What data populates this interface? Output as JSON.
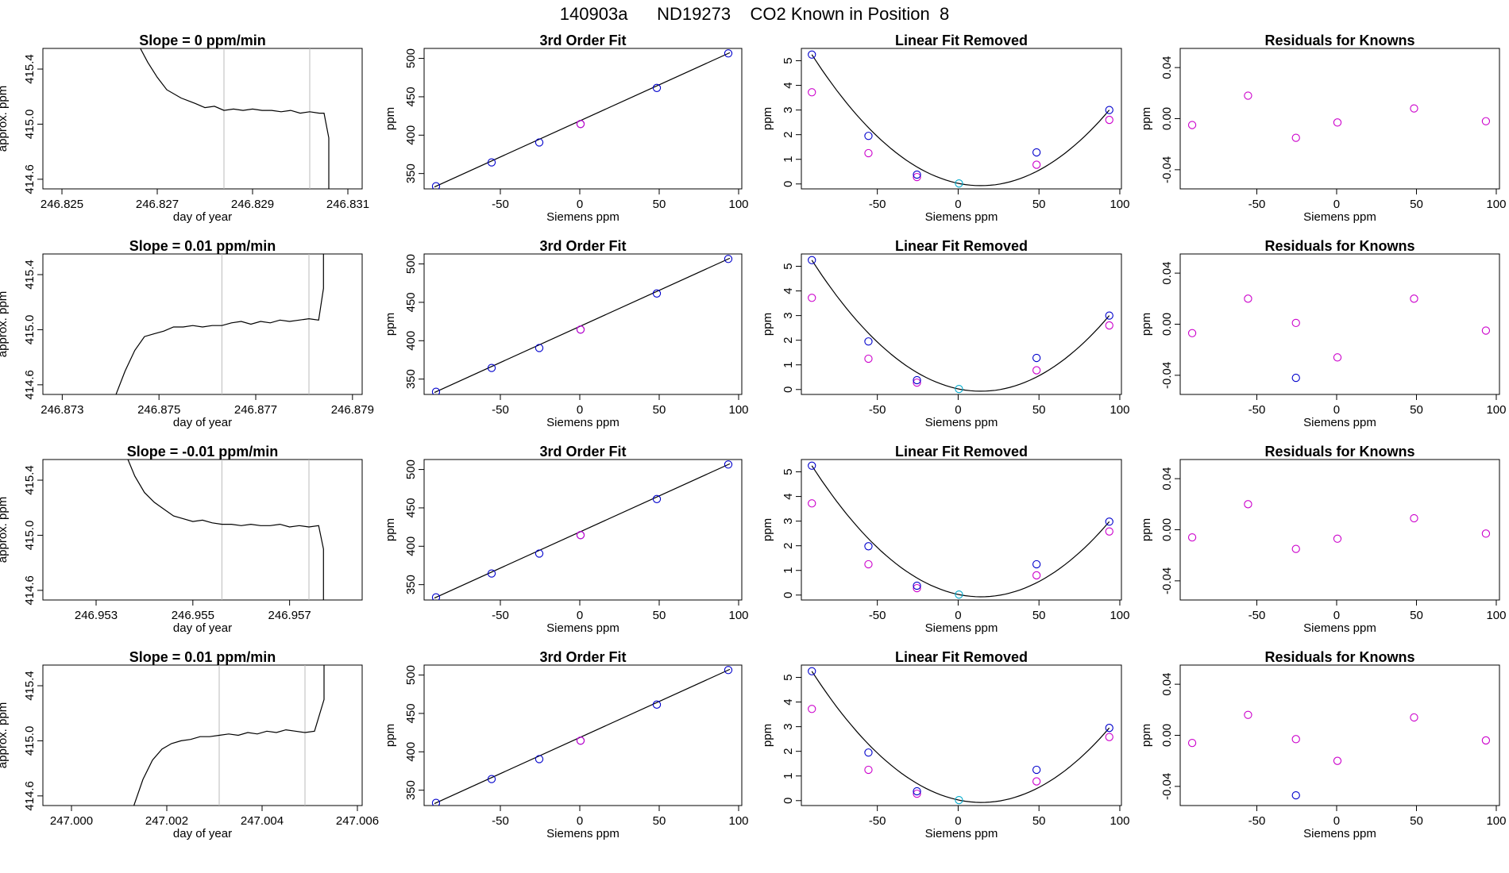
{
  "page_title": "140903a      ND19273    CO2 Known in Position  8",
  "colors": {
    "line": "#000000",
    "knowns": "#0000cc",
    "model": "#cc00cc",
    "reference": "#00aacc",
    "window": "#bbbbbb",
    "frame": "#000000"
  },
  "labels": {
    "fit_title": "3rd Order Fit",
    "lin_title": "Linear Fit Removed",
    "res_title": "Residuals for Knowns",
    "siemens_xlabel": "Siemens ppm",
    "ppm_ylabel": "ppm",
    "time_xlabel": "day of year",
    "time_ylabel": "approx. ppm"
  },
  "chart_data": [
    {
      "row": 1,
      "type": "line",
      "title": "Slope =  0  ppm/min",
      "xlabel": "day of year",
      "ylabel": "approx. ppm",
      "xlim": [
        246.8246,
        246.8313
      ],
      "ylim": [
        414.53,
        415.55
      ],
      "xticks": [
        "246.825",
        "246.827",
        "246.829",
        "246.831"
      ],
      "yticks": [
        "414.6",
        "415.0",
        "415.4"
      ],
      "window": [
        246.8284,
        246.8302
      ],
      "x": [
        246.8266,
        246.8268,
        246.827,
        246.8272,
        246.8275,
        246.8278,
        246.828,
        246.8282,
        246.8284,
        246.8286,
        246.8288,
        246.829,
        246.8292,
        246.8294,
        246.8296,
        246.8298,
        246.83,
        246.8302,
        246.8304,
        246.8305,
        246.8306,
        246.8306
      ],
      "y": [
        415.58,
        415.45,
        415.34,
        415.25,
        415.19,
        415.15,
        415.12,
        415.13,
        415.1,
        415.11,
        415.1,
        415.11,
        415.1,
        415.1,
        415.09,
        415.1,
        415.08,
        415.09,
        415.08,
        415.08,
        414.9,
        414.5
      ]
    },
    {
      "row": 2,
      "type": "line",
      "title": "Slope =  0.01  ppm/min",
      "xlabel": "day of year",
      "ylabel": "approx. ppm",
      "xlim": [
        246.8726,
        246.8792
      ],
      "ylim": [
        414.53,
        415.55
      ],
      "xticks": [
        "246.873",
        "246.875",
        "246.877",
        "246.879"
      ],
      "yticks": [
        "414.6",
        "415.0",
        "415.4"
      ],
      "window": [
        246.8763,
        246.8781
      ],
      "x": [
        246.8741,
        246.8743,
        246.8745,
        246.8747,
        246.8749,
        246.8751,
        246.8753,
        246.8755,
        246.8757,
        246.8759,
        246.8761,
        246.8763,
        246.8765,
        246.8767,
        246.8769,
        246.8771,
        246.8773,
        246.8775,
        246.8777,
        246.8779,
        246.8781,
        246.8783,
        246.8784,
        246.8784
      ],
      "y": [
        414.52,
        414.7,
        414.85,
        414.95,
        414.97,
        414.99,
        415.02,
        415.02,
        415.03,
        415.02,
        415.03,
        415.03,
        415.05,
        415.06,
        415.04,
        415.06,
        415.05,
        415.07,
        415.06,
        415.07,
        415.08,
        415.07,
        415.3,
        415.6
      ]
    },
    {
      "row": 3,
      "type": "line",
      "title": "Slope =  -0.01  ppm/min",
      "xlabel": "day of year",
      "ylabel": "approx. ppm",
      "xlim": [
        246.9519,
        246.9585
      ],
      "ylim": [
        414.53,
        415.55
      ],
      "xticks": [
        "246.953",
        "246.955",
        "246.957"
      ],
      "yticks": [
        "414.6",
        "415.0",
        "415.4"
      ],
      "window": [
        246.9556,
        246.9574
      ],
      "x": [
        246.9536,
        246.9538,
        246.954,
        246.9542,
        246.9544,
        246.9546,
        246.9548,
        246.955,
        246.9552,
        246.9554,
        246.9556,
        246.9558,
        246.956,
        246.9562,
        246.9564,
        246.9566,
        246.9568,
        246.957,
        246.9572,
        246.9574,
        246.9576,
        246.9577,
        246.9577
      ],
      "y": [
        415.6,
        415.43,
        415.31,
        415.24,
        415.19,
        415.14,
        415.12,
        415.1,
        415.11,
        415.09,
        415.08,
        415.08,
        415.07,
        415.08,
        415.07,
        415.07,
        415.08,
        415.06,
        415.07,
        415.06,
        415.07,
        414.9,
        414.5
      ]
    },
    {
      "row": 4,
      "type": "line",
      "title": "Slope =  0.01  ppm/min",
      "xlabel": "day of year",
      "ylabel": "approx. ppm",
      "xlim": [
        246.9994,
        247.0061
      ],
      "ylim": [
        414.53,
        415.55
      ],
      "xticks": [
        "247.000",
        "247.002",
        "247.004",
        "247.006"
      ],
      "yticks": [
        "414.6",
        "415.0",
        "415.4"
      ],
      "window": [
        247.0031,
        247.0049
      ],
      "x": [
        247.0013,
        247.0015,
        247.0017,
        247.0019,
        247.0021,
        247.0023,
        247.0025,
        247.0027,
        247.0029,
        247.0031,
        247.0033,
        247.0035,
        247.0037,
        247.0039,
        247.0041,
        247.0043,
        247.0045,
        247.0047,
        247.0049,
        247.0051,
        247.0053,
        247.0053
      ],
      "y": [
        414.52,
        414.72,
        414.86,
        414.94,
        414.98,
        415.0,
        415.01,
        415.03,
        415.03,
        415.04,
        415.05,
        415.04,
        415.06,
        415.05,
        415.07,
        415.06,
        415.08,
        415.07,
        415.06,
        415.07,
        415.3,
        415.6
      ]
    },
    {
      "row": 1,
      "type": "scatter",
      "title": "3rd Order Fit",
      "xlabel": "Siemens ppm",
      "ylabel": "ppm",
      "xlim": [
        -98,
        102
      ],
      "ylim": [
        330,
        513
      ],
      "xticks": [
        -50,
        0,
        50,
        100
      ],
      "yticks": [
        350,
        400,
        450,
        500
      ],
      "knowns_x": [
        -90.5,
        -55.5,
        -25.5,
        0.5,
        48.5,
        93.5
      ],
      "knowns_y": [
        333.5,
        364.5,
        390.5,
        414.5,
        461.5,
        506.5
      ],
      "reference_x": [
        0.5
      ],
      "reference_y": [
        414.5
      ]
    },
    {
      "row": 2,
      "type": "scatter",
      "title": "3rd Order Fit",
      "xlabel": "Siemens ppm",
      "ylabel": "ppm",
      "xlim": [
        -98,
        102
      ],
      "ylim": [
        330,
        513
      ],
      "xticks": [
        -50,
        0,
        50,
        100
      ],
      "yticks": [
        350,
        400,
        450,
        500
      ],
      "knowns_x": [
        -90.5,
        -55.5,
        -25.5,
        0.5,
        48.5,
        93.5
      ],
      "knowns_y": [
        333.5,
        364.5,
        390.5,
        414.5,
        461.5,
        506.5
      ],
      "reference_x": [
        0.5
      ],
      "reference_y": [
        414.5
      ]
    },
    {
      "row": 3,
      "type": "scatter",
      "title": "3rd Order Fit",
      "xlabel": "Siemens ppm",
      "ylabel": "ppm",
      "xlim": [
        -98,
        102
      ],
      "ylim": [
        330,
        513
      ],
      "xticks": [
        -50,
        0,
        50,
        100
      ],
      "yticks": [
        350,
        400,
        450,
        500
      ],
      "knowns_x": [
        -90.5,
        -55.5,
        -25.5,
        0.5,
        48.5,
        93.5
      ],
      "knowns_y": [
        333.5,
        364.5,
        390.5,
        414.5,
        461.5,
        506.5
      ],
      "reference_x": [
        0.5
      ],
      "reference_y": [
        414.5
      ]
    },
    {
      "row": 4,
      "type": "scatter",
      "title": "3rd Order Fit",
      "xlabel": "Siemens ppm",
      "ylabel": "ppm",
      "xlim": [
        -98,
        102
      ],
      "ylim": [
        330,
        513
      ],
      "xticks": [
        -50,
        0,
        50,
        100
      ],
      "yticks": [
        350,
        400,
        450,
        500
      ],
      "knowns_x": [
        -90.5,
        -55.5,
        -25.5,
        0.5,
        48.5,
        93.5
      ],
      "knowns_y": [
        333.5,
        364.5,
        390.5,
        414.5,
        461.5,
        506.5
      ],
      "reference_x": [
        0.5
      ],
      "reference_y": [
        414.5
      ]
    },
    {
      "row": 1,
      "type": "scatter",
      "title": "Linear Fit Removed",
      "xlabel": "Siemens ppm",
      "ylabel": "ppm",
      "xlim": [
        -97,
        101
      ],
      "ylim": [
        -0.2,
        5.5
      ],
      "xticks": [
        -50,
        0,
        50,
        100
      ],
      "yticks": [
        0,
        1,
        2,
        3,
        4,
        5
      ],
      "knowns_x": [
        -90.5,
        -55.5,
        -25.5,
        0.5,
        48.5,
        93.5
      ],
      "knowns_y": [
        5.25,
        1.95,
        0.38,
        0.02,
        1.28,
        3.0
      ],
      "model_x": [
        -90.5,
        -55.5,
        -25.5,
        48.5,
        93.5
      ],
      "model_y": [
        3.72,
        1.25,
        0.28,
        0.78,
        2.6
      ],
      "reference_x": [
        0.5
      ],
      "reference_y": [
        0.02
      ]
    },
    {
      "row": 2,
      "type": "scatter",
      "title": "Linear Fit Removed",
      "xlabel": "Siemens ppm",
      "ylabel": "ppm",
      "xlim": [
        -97,
        101
      ],
      "ylim": [
        -0.2,
        5.5
      ],
      "xticks": [
        -50,
        0,
        50,
        100
      ],
      "yticks": [
        0,
        1,
        2,
        3,
        4,
        5
      ],
      "knowns_x": [
        -90.5,
        -55.5,
        -25.5,
        0.5,
        48.5,
        93.5
      ],
      "knowns_y": [
        5.25,
        1.95,
        0.38,
        0.02,
        1.28,
        3.0
      ],
      "model_x": [
        -90.5,
        -55.5,
        -25.5,
        48.5,
        93.5
      ],
      "model_y": [
        3.72,
        1.25,
        0.28,
        0.78,
        2.6
      ],
      "reference_x": [
        0.5
      ],
      "reference_y": [
        0.02
      ]
    },
    {
      "row": 3,
      "type": "scatter",
      "title": "Linear Fit Removed",
      "xlabel": "Siemens ppm",
      "ylabel": "ppm",
      "xlim": [
        -97,
        101
      ],
      "ylim": [
        -0.2,
        5.5
      ],
      "xticks": [
        -50,
        0,
        50,
        100
      ],
      "yticks": [
        0,
        1,
        2,
        3,
        4,
        5
      ],
      "knowns_x": [
        -90.5,
        -55.5,
        -25.5,
        0.5,
        48.5,
        93.5
      ],
      "knowns_y": [
        5.25,
        1.98,
        0.38,
        0.02,
        1.25,
        2.98
      ],
      "model_x": [
        -90.5,
        -55.5,
        -25.5,
        48.5,
        93.5
      ],
      "model_y": [
        3.72,
        1.25,
        0.28,
        0.8,
        2.58
      ],
      "reference_x": [
        0.5
      ],
      "reference_y": [
        0.02
      ]
    },
    {
      "row": 4,
      "type": "scatter",
      "title": "Linear Fit Removed",
      "xlabel": "Siemens ppm",
      "ylabel": "ppm",
      "xlim": [
        -97,
        101
      ],
      "ylim": [
        -0.2,
        5.5
      ],
      "xticks": [
        -50,
        0,
        50,
        100
      ],
      "yticks": [
        0,
        1,
        2,
        3,
        4,
        5
      ],
      "knowns_x": [
        -90.5,
        -55.5,
        -25.5,
        0.5,
        48.5,
        93.5
      ],
      "knowns_y": [
        5.25,
        1.95,
        0.38,
        0.02,
        1.25,
        2.95
      ],
      "model_x": [
        -90.5,
        -55.5,
        -25.5,
        48.5,
        93.5
      ],
      "model_y": [
        3.72,
        1.25,
        0.28,
        0.78,
        2.58
      ],
      "reference_x": [
        0.5
      ],
      "reference_y": [
        0.02
      ]
    },
    {
      "row": 1,
      "type": "scatter",
      "title": "Residuals for Knowns",
      "xlabel": "Siemens ppm",
      "ylabel": "ppm",
      "xlim": [
        -98,
        102
      ],
      "ylim": [
        -0.055,
        0.055
      ],
      "xticks": [
        -50,
        0,
        50,
        100
      ],
      "yticks": [
        "-0.04",
        "0.00",
        "0.04"
      ],
      "model_x": [
        -90.5,
        -55.5,
        -25.5,
        0.5,
        48.5,
        93.5
      ],
      "model_y": [
        -0.005,
        0.018,
        -0.015,
        -0.003,
        0.008,
        -0.002
      ],
      "knowns_x": [],
      "knowns_y": []
    },
    {
      "row": 2,
      "type": "scatter",
      "title": "Residuals for Knowns",
      "xlabel": "Siemens ppm",
      "ylabel": "ppm",
      "xlim": [
        -98,
        102
      ],
      "ylim": [
        -0.055,
        0.055
      ],
      "xticks": [
        -50,
        0,
        50,
        100
      ],
      "yticks": [
        "-0.04",
        "0.00",
        "0.04"
      ],
      "model_x": [
        -90.5,
        -55.5,
        -25.5,
        0.5,
        48.5,
        93.5
      ],
      "model_y": [
        -0.007,
        0.02,
        0.001,
        -0.026,
        0.02,
        -0.005
      ],
      "knowns_x": [
        -25.5
      ],
      "knowns_y": [
        -0.042
      ]
    },
    {
      "row": 3,
      "type": "scatter",
      "title": "Residuals for Knowns",
      "xlabel": "Siemens ppm",
      "ylabel": "ppm",
      "xlim": [
        -98,
        102
      ],
      "ylim": [
        -0.055,
        0.055
      ],
      "xticks": [
        -50,
        0,
        50,
        100
      ],
      "yticks": [
        "-0.04",
        "0.00",
        "0.04"
      ],
      "model_x": [
        -90.5,
        -55.5,
        -25.5,
        0.5,
        48.5,
        93.5
      ],
      "model_y": [
        -0.006,
        0.02,
        -0.015,
        -0.007,
        0.009,
        -0.003
      ],
      "knowns_x": [],
      "knowns_y": []
    },
    {
      "row": 4,
      "type": "scatter",
      "title": "Residuals for Knowns",
      "xlabel": "Siemens ppm",
      "ylabel": "ppm",
      "xlim": [
        -98,
        102
      ],
      "ylim": [
        -0.055,
        0.055
      ],
      "xticks": [
        -50,
        0,
        50,
        100
      ],
      "yticks": [
        "-0.04",
        "0.00",
        "0.04"
      ],
      "model_x": [
        -90.5,
        -55.5,
        -25.5,
        0.5,
        48.5,
        93.5
      ],
      "model_y": [
        -0.006,
        0.016,
        -0.003,
        -0.02,
        0.014,
        -0.004
      ],
      "knowns_x": [
        -25.5
      ],
      "knowns_y": [
        -0.047
      ]
    }
  ]
}
